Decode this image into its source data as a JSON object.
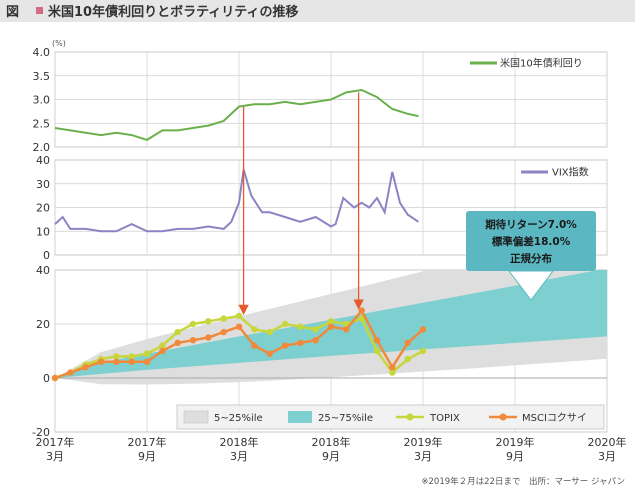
{
  "header": {
    "badge": "図",
    "title": "米国10年債利回りとボラティリティの推移"
  },
  "footnote": "※2019年２月は22日まで　出所：マーサー ジャパン",
  "x_axis": {
    "domain": [
      0,
      36
    ],
    "ticks": [
      {
        "t": 0,
        "line1": "2017年",
        "line2": "3月"
      },
      {
        "t": 6,
        "line1": "2017年",
        "line2": "9月"
      },
      {
        "t": 12,
        "line1": "2018年",
        "line2": "3月"
      },
      {
        "t": 18,
        "line1": "2018年",
        "line2": "9月"
      },
      {
        "t": 24,
        "line1": "2019年",
        "line2": "3月"
      },
      {
        "t": 30,
        "line1": "2019年",
        "line2": "9月"
      },
      {
        "t": 36,
        "line1": "2020年",
        "line2": "3月"
      }
    ]
  },
  "annotation": {
    "line1": "期待リターン7.0%",
    "line2": "標準偏差18.0%",
    "line3": "正規分布"
  },
  "colors": {
    "yield": "#6ab04c",
    "vix": "#8b84c4",
    "band_outer": "#dedede",
    "band_inner": "#7ecfcf",
    "topix": "#c7d63a",
    "msci": "#f08a3a",
    "arrow": "#e55a2b",
    "callout": "#5bb8c2",
    "header_bar": "#e6e6e6",
    "badge": "#d16b86"
  },
  "chart_data": [
    {
      "id": "yield",
      "type": "line",
      "unit": "(%)",
      "ylim": [
        2.0,
        4.0
      ],
      "yticks": [
        "4.0",
        "3.5",
        "3.0",
        "2.5",
        "2.0"
      ],
      "legend": "米国10年債利回り",
      "series": [
        {
          "name": "米国10年債利回り",
          "x": [
            0,
            1,
            2,
            3,
            4,
            5,
            6,
            7,
            8,
            9,
            10,
            11,
            12,
            13,
            14,
            15,
            16,
            17,
            18,
            19,
            20,
            21,
            22,
            23,
            23.7
          ],
          "y": [
            2.4,
            2.35,
            2.3,
            2.25,
            2.3,
            2.25,
            2.15,
            2.35,
            2.35,
            2.4,
            2.45,
            2.55,
            2.85,
            2.9,
            2.9,
            2.95,
            2.9,
            2.95,
            3.0,
            3.15,
            3.2,
            3.05,
            2.8,
            2.7,
            2.65
          ]
        }
      ]
    },
    {
      "id": "vix",
      "type": "line",
      "ylim": [
        0,
        40
      ],
      "yticks": [
        "40",
        "30",
        "20",
        "10",
        "0"
      ],
      "legend": "VIX指数",
      "series": [
        {
          "name": "VIX指数",
          "x": [
            0,
            0.5,
            1,
            2,
            3,
            4,
            5,
            6,
            7,
            8,
            9,
            10,
            11,
            11.5,
            12,
            12.3,
            12.8,
            13.5,
            14,
            15,
            16,
            17,
            18,
            18.3,
            18.8,
            19.5,
            20,
            20.5,
            21,
            21.5,
            22,
            22.5,
            23,
            23.7
          ],
          "y": [
            13,
            16,
            11,
            11,
            10,
            10,
            13,
            10,
            10,
            11,
            11,
            12,
            11,
            14,
            22,
            36,
            25,
            18,
            18,
            16,
            14,
            16,
            12,
            13,
            24,
            20,
            22,
            20,
            24,
            18,
            35,
            22,
            17,
            14
          ]
        }
      ]
    },
    {
      "id": "returns",
      "type": "area",
      "ylim": [
        -20,
        40
      ],
      "yticks": [
        "40",
        "20",
        "0",
        "-20"
      ],
      "legend": [
        "5~25%ile",
        "25~75%ile",
        "TOPIX",
        "MSCIコクサイ"
      ],
      "bands": {
        "x": [
          0,
          3,
          6,
          9,
          12,
          15,
          18,
          21,
          24,
          27,
          30,
          33,
          36
        ],
        "p5": [
          0,
          -2.3,
          -2.4,
          -2.1,
          -1.5,
          -0.7,
          0.3,
          1.3,
          2.4,
          3.5,
          4.7,
          5.9,
          7.1
        ],
        "p25": [
          0,
          1.5,
          3.0,
          4.3,
          5.6,
          6.9,
          8.2,
          9.4,
          10.6,
          11.8,
          13.0,
          14.2,
          15.4
        ],
        "p75": [
          0,
          5.7,
          9.0,
          12.2,
          15.4,
          18.5,
          21.6,
          24.7,
          27.9,
          31.0,
          34.2,
          37.4,
          40.6
        ],
        "p95": [
          0,
          9.6,
          14.4,
          18.7,
          22.9,
          27.0,
          31.1,
          35.3,
          39.5,
          43.7,
          48.0,
          52.4,
          56.8
        ]
      },
      "series": [
        {
          "name": "TOPIX",
          "x": [
            0,
            1,
            2,
            3,
            4,
            5,
            6,
            7,
            8,
            9,
            10,
            11,
            12,
            13,
            14,
            15,
            16,
            17,
            18,
            19,
            20,
            21,
            22,
            23,
            24
          ],
          "y": [
            0,
            2,
            5,
            7,
            8,
            8,
            9,
            12,
            17,
            20,
            21,
            22,
            23,
            18,
            17,
            20,
            19,
            18,
            21,
            20,
            22,
            10,
            2,
            7,
            10
          ]
        },
        {
          "name": "MSCIコクサイ",
          "x": [
            0,
            1,
            2,
            3,
            4,
            5,
            6,
            7,
            8,
            9,
            10,
            11,
            12,
            13,
            14,
            15,
            16,
            17,
            18,
            19,
            20,
            21,
            22,
            23,
            24
          ],
          "y": [
            0,
            2,
            4,
            6,
            6,
            6,
            6,
            10,
            13,
            14,
            15,
            17,
            19,
            12,
            9,
            12,
            13,
            14,
            19,
            18,
            25,
            14,
            4,
            13,
            18
          ]
        }
      ]
    }
  ]
}
